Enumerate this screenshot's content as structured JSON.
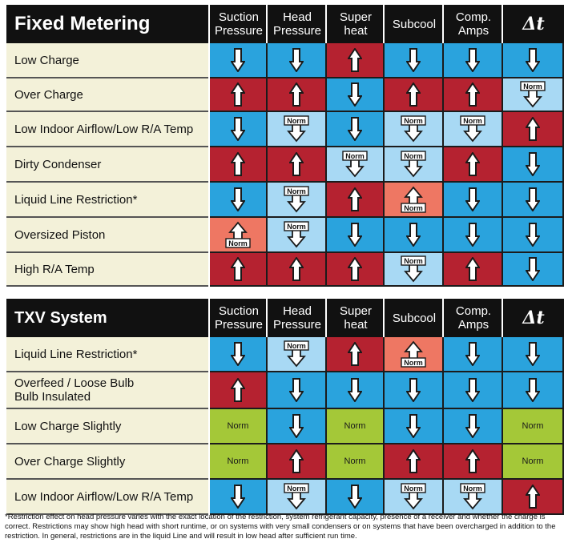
{
  "columns": [
    "Suction\nPressure",
    "Head\nPressure",
    "Super\nheat",
    "Subcool",
    "Comp.\nAmps",
    "Δt"
  ],
  "colors": {
    "down": "#2aa3dd",
    "up": "#b52230",
    "norm": "#a8d9f4",
    "up_norm": "#ee7763",
    "green": "#a4c838"
  },
  "fixed": {
    "title": "Fixed Metering",
    "rows": [
      {
        "label": "Low Charge",
        "cells": [
          "down",
          "down",
          "up",
          "down",
          "down",
          "down"
        ]
      },
      {
        "label": "Over Charge",
        "cells": [
          "up",
          "up",
          "down",
          "up",
          "up",
          "norm-down"
        ]
      },
      {
        "label": "Low Indoor Airflow/Low R/A Temp",
        "cells": [
          "down",
          "norm-down",
          "down",
          "norm-down",
          "norm-down",
          "up"
        ]
      },
      {
        "label": "Dirty Condenser",
        "cells": [
          "up",
          "up",
          "norm-down",
          "norm-down",
          "up",
          "down"
        ]
      },
      {
        "label": "Liquid Line Restriction*",
        "cells": [
          "down",
          "norm-down",
          "up",
          "up-norm",
          "down",
          "down"
        ]
      },
      {
        "label": "Oversized Piston",
        "cells": [
          "up-norm",
          "norm-down",
          "down",
          "down",
          "down",
          "down"
        ]
      },
      {
        "label": "High R/A Temp",
        "cells": [
          "up",
          "up",
          "up",
          "norm-down",
          "up",
          "down"
        ]
      }
    ]
  },
  "txv": {
    "title": "TXV System",
    "rows": [
      {
        "label": "Liquid Line Restriction*",
        "cells": [
          "down",
          "norm-down",
          "up",
          "up-norm",
          "down",
          "down"
        ]
      },
      {
        "label": "Overfeed / Loose Bulb\nBulb Insulated",
        "cells": [
          "up",
          "down",
          "down",
          "down",
          "down",
          "down"
        ]
      },
      {
        "label": "Low Charge   Slightly",
        "cells": [
          "green",
          "down",
          "green",
          "down",
          "down",
          "green"
        ]
      },
      {
        "label": "Over Charge   Slightly",
        "cells": [
          "green",
          "up",
          "green",
          "up",
          "up",
          "green"
        ]
      },
      {
        "label": "Low Indoor Airflow/Low R/A Temp",
        "cells": [
          "down",
          "norm-down",
          "down",
          "norm-down",
          "norm-down",
          "up"
        ]
      }
    ]
  },
  "norm_label": "Norm",
  "footnote": "*Restriction effect on head pressure varies with the exact location of the restriction, system refrigerant capacity, presence of a receiver and whether the charge is correct. Restrictions may show high head with short runtime, or on systems with very small condensers or on systems that have been overcharged in addition to the restriction. In general, restrictions are in the liquid Line and will result in low head after sufficient run time."
}
